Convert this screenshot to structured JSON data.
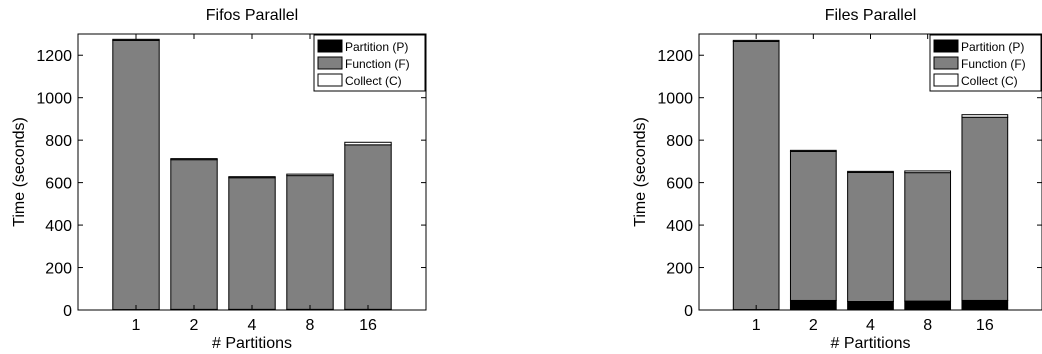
{
  "chart_data": [
    {
      "type": "bar",
      "stacked": true,
      "title": "Fifos Parallel",
      "xlabel": "# Partitions",
      "ylabel": "Time (seconds)",
      "categories": [
        "1",
        "2",
        "4",
        "8",
        "16"
      ],
      "ylim": [
        0,
        1300
      ],
      "yticks": [
        0,
        200,
        400,
        600,
        800,
        1000,
        1200
      ],
      "legend_position": "top-right",
      "series": [
        {
          "name": "Partition (P)",
          "color": "#000000",
          "values": [
            2,
            3,
            3,
            3,
            3
          ]
        },
        {
          "name": "Function (F)",
          "color": "#808080",
          "values": [
            1268,
            705,
            620,
            630,
            775
          ]
        },
        {
          "name": "Collect (C)",
          "color": "#ffffff",
          "values": [
            5,
            5,
            5,
            7,
            12
          ]
        }
      ]
    },
    {
      "type": "bar",
      "stacked": true,
      "title": "Files Parallel",
      "xlabel": "# Partitions",
      "ylabel": "Time (seconds)",
      "categories": [
        "1",
        "2",
        "4",
        "8",
        "16"
      ],
      "ylim": [
        0,
        1300
      ],
      "yticks": [
        0,
        200,
        400,
        600,
        800,
        1000,
        1200
      ],
      "legend_position": "top-right",
      "series": [
        {
          "name": "Partition (P)",
          "color": "#000000",
          "values": [
            2,
            45,
            40,
            42,
            45
          ]
        },
        {
          "name": "Function (F)",
          "color": "#808080",
          "values": [
            1263,
            702,
            608,
            605,
            863
          ]
        },
        {
          "name": "Collect (C)",
          "color": "#ffffff",
          "values": [
            5,
            5,
            5,
            8,
            12
          ]
        }
      ]
    }
  ]
}
